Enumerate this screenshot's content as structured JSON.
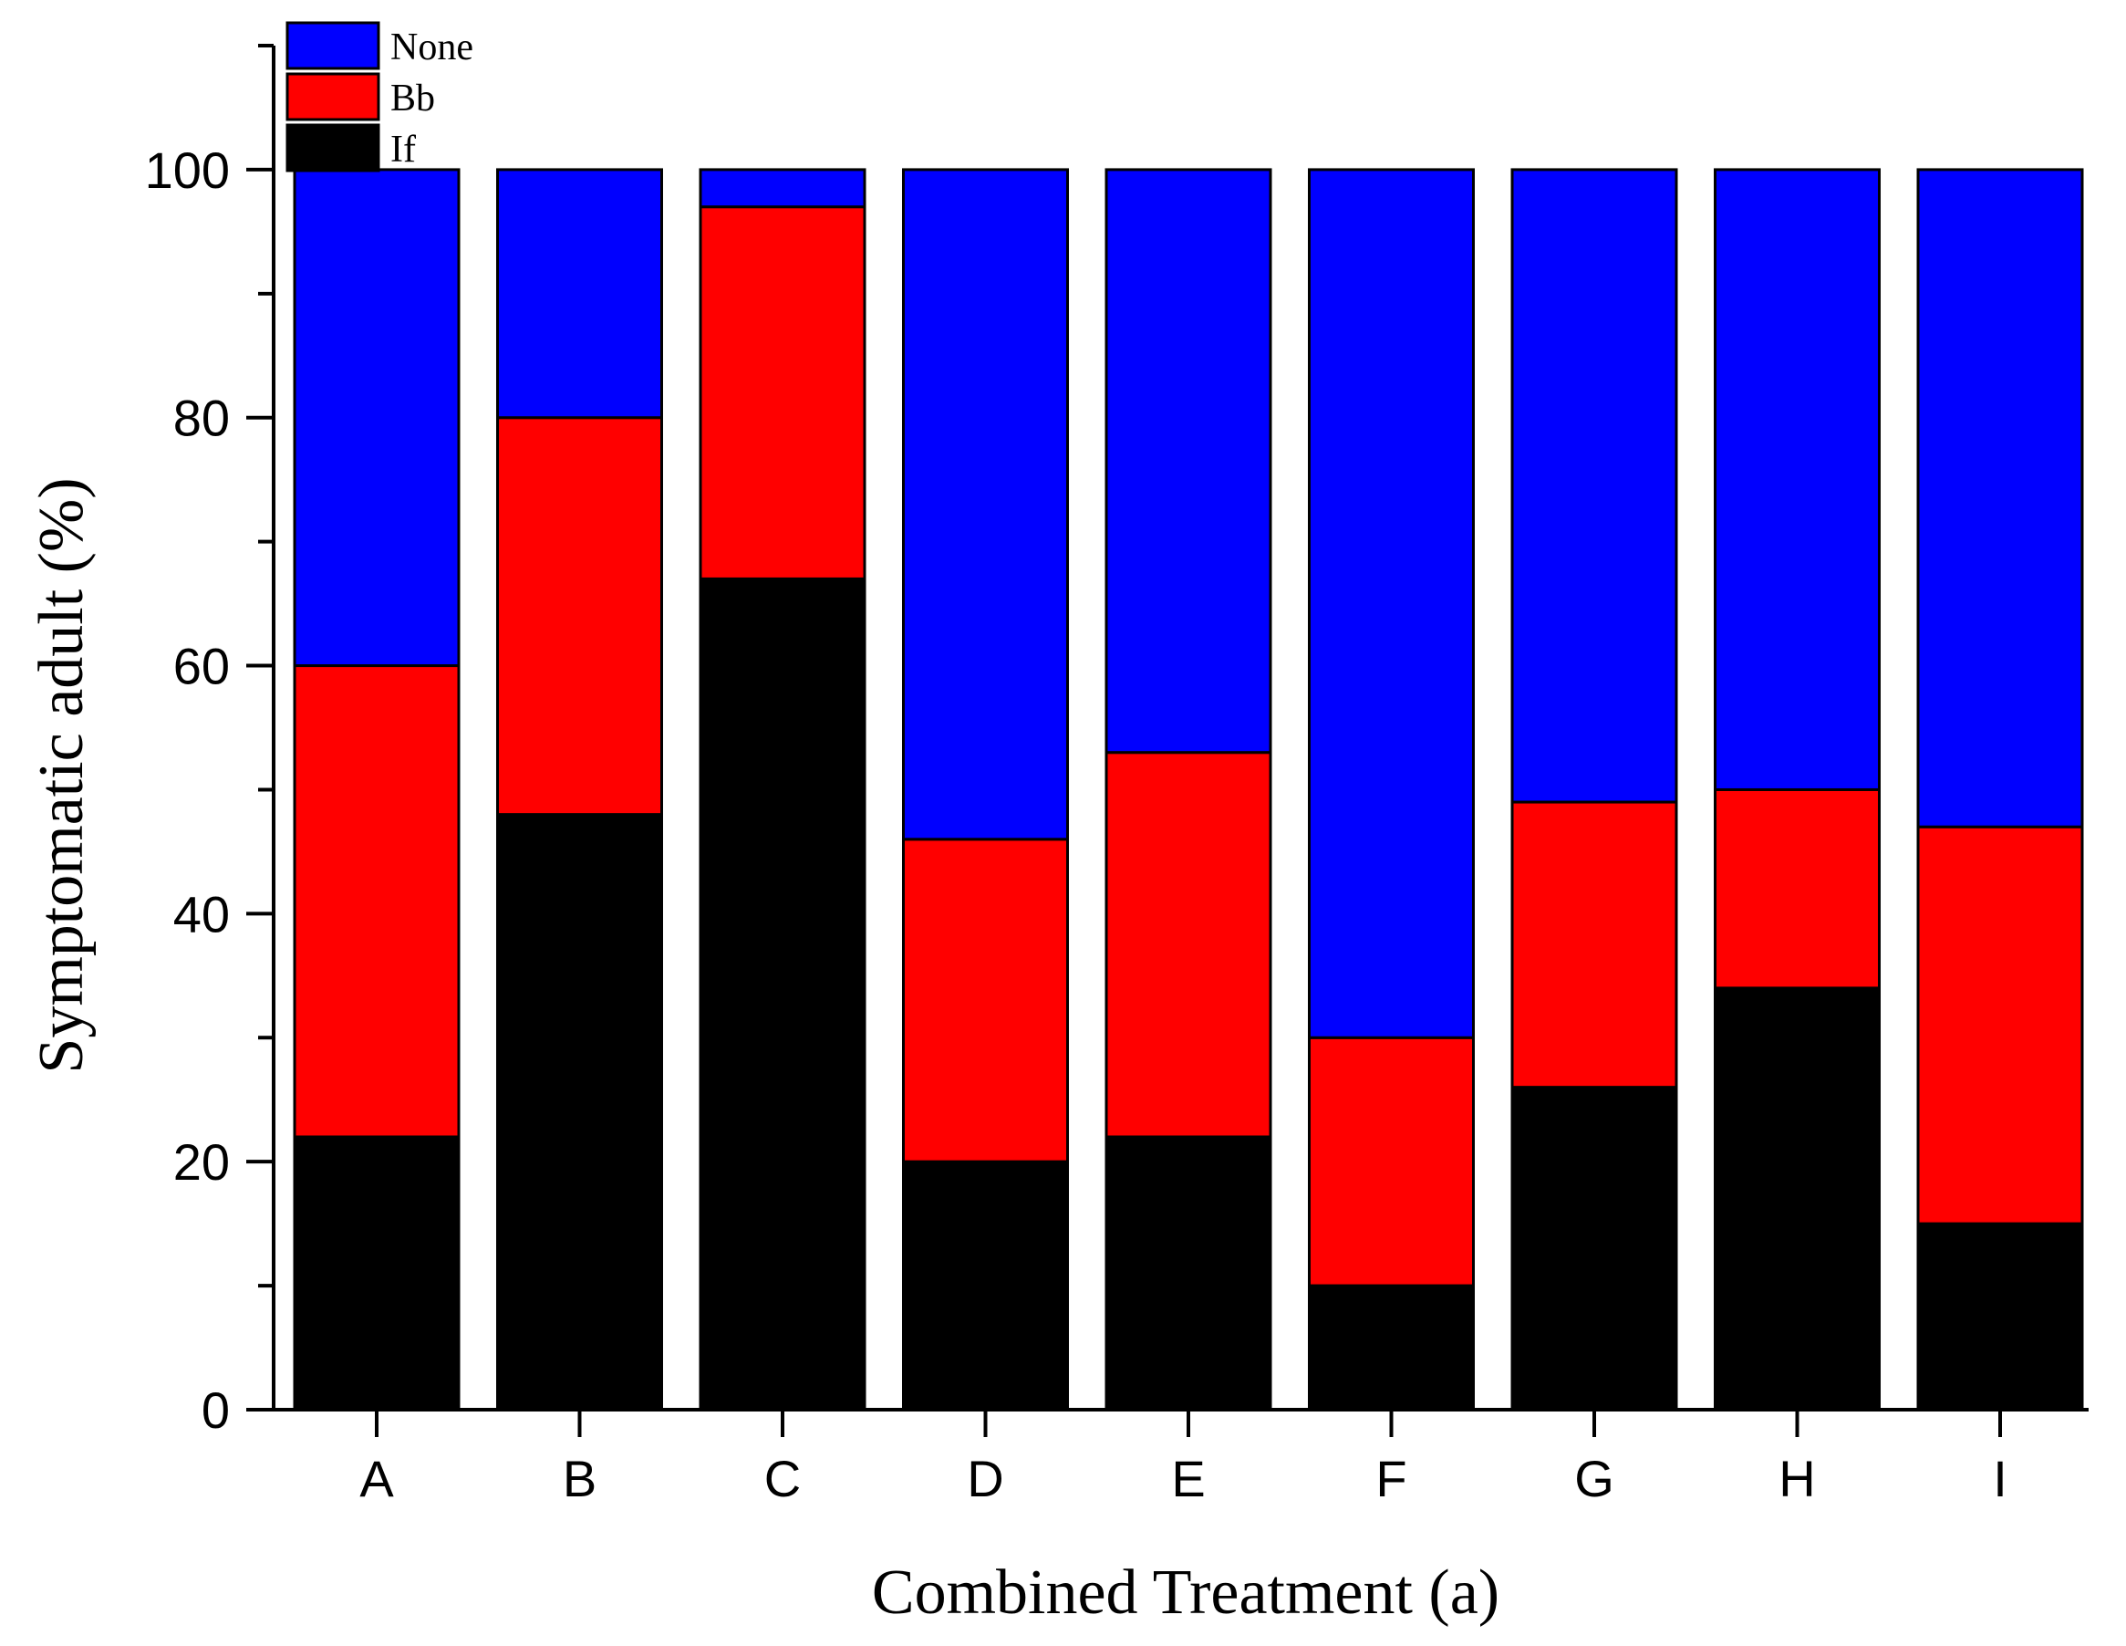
{
  "chart_data": {
    "type": "bar",
    "stacked": true,
    "categories": [
      "A",
      "B",
      "C",
      "D",
      "E",
      "F",
      "G",
      "H",
      "I"
    ],
    "series": [
      {
        "name": "If",
        "color": "#000000",
        "values": [
          22,
          48,
          67,
          20,
          22,
          10,
          26,
          34,
          15
        ]
      },
      {
        "name": "Bb",
        "color": "#ff0000",
        "values": [
          38,
          32,
          30,
          26,
          31,
          20,
          23,
          16,
          32
        ]
      },
      {
        "name": "None",
        "color": "#0000ff",
        "values": [
          40,
          20,
          3,
          54,
          47,
          70,
          51,
          50,
          53
        ]
      }
    ],
    "legend_order": [
      "None",
      "Bb",
      "If"
    ],
    "legend_position": "top-left",
    "xlabel": "Combined Treatment (a)",
    "ylabel": "Symptomatic adult (%)",
    "ylim": [
      0,
      110
    ],
    "yticks": [
      0,
      20,
      40,
      60,
      80,
      100
    ],
    "y_minor_step": 10,
    "grid": false
  }
}
